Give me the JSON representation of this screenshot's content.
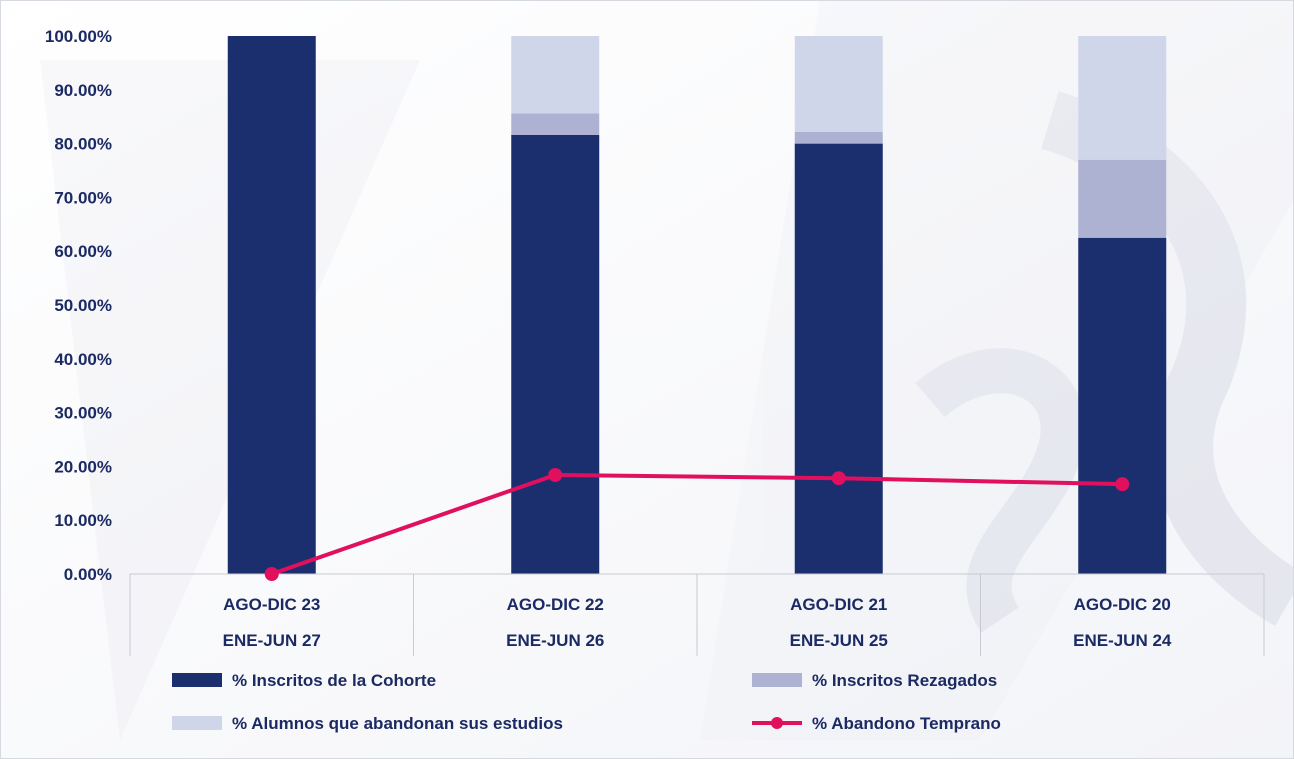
{
  "chart_data": {
    "type": "bar",
    "stacked": true,
    "categories": [
      [
        "AGO-DIC 23",
        "ENE-JUN 27"
      ],
      [
        "AGO-DIC 22",
        "ENE-JUN 26"
      ],
      [
        "AGO-DIC 21",
        "ENE-JUN 25"
      ],
      [
        "AGO-DIC 20",
        "ENE-JUN 24"
      ]
    ],
    "series": [
      {
        "name": "% Inscritos de la Cohorte",
        "kind": "bar",
        "color": "#1b2e6e",
        "values": [
          100.0,
          81.6,
          80.0,
          62.5
        ]
      },
      {
        "name": "% Inscritos Rezagados",
        "kind": "bar",
        "color": "#adb2d2",
        "values": [
          0.0,
          4.0,
          2.2,
          14.5
        ]
      },
      {
        "name": "% Alumnos que abandonan sus estudios",
        "kind": "bar",
        "color": "#d0d6e9",
        "values": [
          0.0,
          14.4,
          17.8,
          23.0
        ]
      },
      {
        "name": "% Abandono Temprano",
        "kind": "line",
        "color": "#e0105f",
        "values": [
          0.0,
          18.4,
          17.8,
          16.7
        ]
      }
    ],
    "yticks": [
      "0.00%",
      "10.00%",
      "20.00%",
      "30.00%",
      "40.00%",
      "50.00%",
      "60.00%",
      "70.00%",
      "80.00%",
      "90.00%",
      "100.00%"
    ],
    "ylim": [
      0,
      100
    ],
    "grid": false,
    "legend_position": "bottom"
  }
}
